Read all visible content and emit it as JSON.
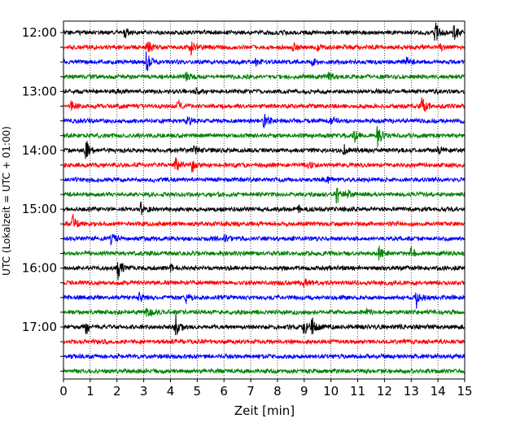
{
  "chart_data": {
    "type": "line",
    "subtype": "helicorder-seismogram",
    "title": "",
    "xlabel": "Zeit  [min]",
    "ylabel": "UTC (Lokalzeit = UTC + 01:00)",
    "xlim": [
      0,
      15
    ],
    "xticks": [
      0,
      1,
      2,
      3,
      4,
      5,
      6,
      7,
      8,
      9,
      10,
      11,
      12,
      13,
      14,
      15
    ],
    "x_gridlines": "dotted vertical at each minute",
    "row_interval_minutes": 15,
    "row_start_times": [
      "12:00",
      "12:15",
      "12:30",
      "12:45",
      "13:00",
      "13:15",
      "13:30",
      "13:45",
      "14:00",
      "14:15",
      "14:30",
      "14:45",
      "15:00",
      "15:15",
      "15:30",
      "15:45",
      "16:00",
      "16:15",
      "16:30",
      "16:45",
      "17:00",
      "17:15",
      "17:30",
      "17:45"
    ],
    "yticks": [
      "12:00",
      "13:00",
      "14:00",
      "15:00",
      "16:00",
      "17:00"
    ],
    "trace_color_cycle": [
      "#000000",
      "#ff0000",
      "#0000ff",
      "#008000"
    ],
    "events": [
      {
        "row": 0,
        "t": 2.3,
        "a": 0.35
      },
      {
        "row": 0,
        "t": 13.9,
        "a": 1.0
      },
      {
        "row": 0,
        "t": 14.6,
        "a": 0.8
      },
      {
        "row": 1,
        "t": 3.15,
        "a": 0.9
      },
      {
        "row": 1,
        "t": 4.75,
        "a": 0.7
      },
      {
        "row": 1,
        "t": 8.6,
        "a": 0.35
      },
      {
        "row": 1,
        "t": 9.5,
        "a": 0.3
      },
      {
        "row": 1,
        "t": 14.1,
        "a": 0.3
      },
      {
        "row": 2,
        "t": 3.1,
        "a": 1.0
      },
      {
        "row": 2,
        "t": 7.2,
        "a": 0.3
      },
      {
        "row": 2,
        "t": 9.3,
        "a": 0.3
      },
      {
        "row": 2,
        "t": 12.8,
        "a": 0.4
      },
      {
        "row": 3,
        "t": 4.6,
        "a": 0.4
      },
      {
        "row": 3,
        "t": 9.9,
        "a": 0.3
      },
      {
        "row": 4,
        "t": 5.0,
        "a": 0.25
      },
      {
        "row": 5,
        "t": 0.3,
        "a": 0.4
      },
      {
        "row": 5,
        "t": 4.3,
        "a": 0.45
      },
      {
        "row": 5,
        "t": 13.4,
        "a": 0.75
      },
      {
        "row": 6,
        "t": 4.6,
        "a": 0.6
      },
      {
        "row": 6,
        "t": 7.5,
        "a": 0.9
      },
      {
        "row": 6,
        "t": 10.0,
        "a": 0.3
      },
      {
        "row": 7,
        "t": 10.9,
        "a": 0.5
      },
      {
        "row": 7,
        "t": 11.75,
        "a": 0.9
      },
      {
        "row": 8,
        "t": 0.85,
        "a": 0.95
      },
      {
        "row": 8,
        "t": 4.9,
        "a": 0.3
      },
      {
        "row": 8,
        "t": 10.5,
        "a": 0.4
      },
      {
        "row": 8,
        "t": 14.0,
        "a": 0.35
      },
      {
        "row": 9,
        "t": 4.2,
        "a": 0.65
      },
      {
        "row": 9,
        "t": 4.8,
        "a": 0.6
      },
      {
        "row": 9,
        "t": 9.2,
        "a": 0.3
      },
      {
        "row": 10,
        "t": 9.9,
        "a": 0.25
      },
      {
        "row": 11,
        "t": 10.2,
        "a": 1.0
      },
      {
        "row": 11,
        "t": 10.6,
        "a": 0.35
      },
      {
        "row": 12,
        "t": 2.9,
        "a": 0.8
      },
      {
        "row": 12,
        "t": 8.8,
        "a": 0.4
      },
      {
        "row": 13,
        "t": 0.35,
        "a": 0.75
      },
      {
        "row": 14,
        "t": 1.8,
        "a": 0.6
      },
      {
        "row": 14,
        "t": 6.0,
        "a": 0.3
      },
      {
        "row": 15,
        "t": 11.8,
        "a": 0.6
      },
      {
        "row": 15,
        "t": 13.0,
        "a": 0.45
      },
      {
        "row": 16,
        "t": 2.05,
        "a": 1.0
      },
      {
        "row": 16,
        "t": 4.0,
        "a": 0.3
      },
      {
        "row": 17,
        "t": 9.0,
        "a": 0.35
      },
      {
        "row": 18,
        "t": 2.85,
        "a": 0.4
      },
      {
        "row": 18,
        "t": 4.6,
        "a": 0.5
      },
      {
        "row": 18,
        "t": 13.2,
        "a": 0.8
      },
      {
        "row": 19,
        "t": 3.15,
        "a": 0.7
      },
      {
        "row": 19,
        "t": 11.3,
        "a": 0.3
      },
      {
        "row": 20,
        "t": 0.85,
        "a": 0.55
      },
      {
        "row": 20,
        "t": 4.2,
        "a": 1.0
      },
      {
        "row": 20,
        "t": 9.0,
        "a": 0.7
      },
      {
        "row": 20,
        "t": 9.3,
        "a": 0.7
      }
    ]
  }
}
